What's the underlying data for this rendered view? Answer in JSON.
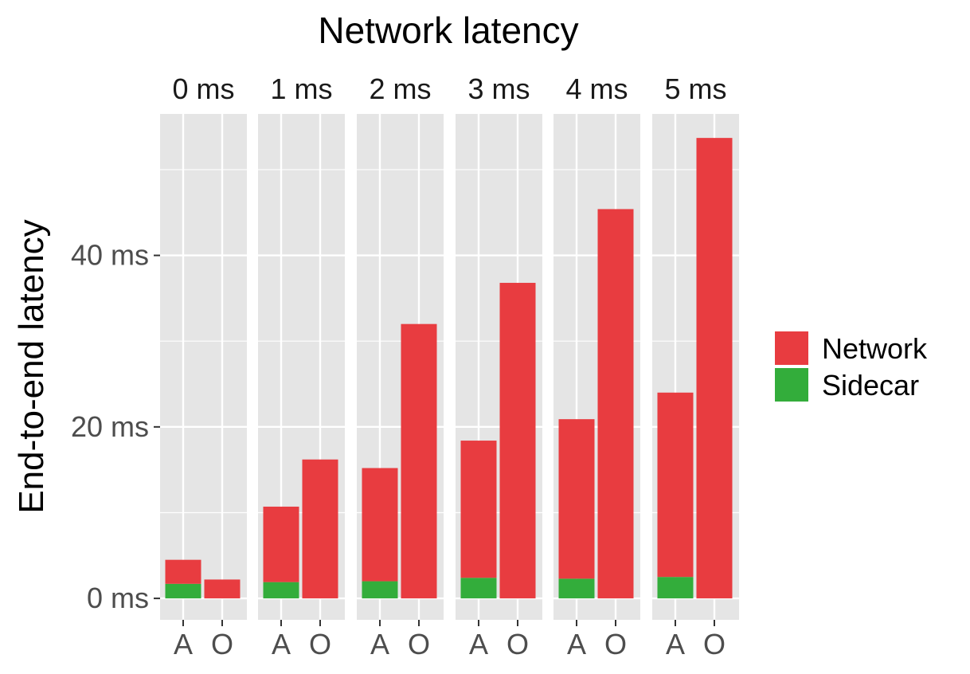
{
  "chart_data": {
    "type": "bar",
    "stacked": true,
    "title": "Network latency",
    "ylabel": "End-to-end latency",
    "xlabel": "",
    "facets": [
      "0 ms",
      "1 ms",
      "2 ms",
      "3 ms",
      "4 ms",
      "5 ms"
    ],
    "categories": [
      "A",
      "O"
    ],
    "yticks": [
      0,
      20,
      40
    ],
    "ytick_labels": [
      "0 ms",
      "20 ms",
      "40 ms"
    ],
    "ylim": [
      -2.5,
      56.5
    ],
    "series": [
      {
        "name": "Sidecar",
        "color": "#33ad3b",
        "values": [
          [
            1.7,
            0
          ],
          [
            1.9,
            0
          ],
          [
            2.0,
            0
          ],
          [
            2.4,
            0
          ],
          [
            2.3,
            0
          ],
          [
            2.5,
            0
          ]
        ]
      },
      {
        "name": "Network",
        "color": "#e83c40",
        "values": [
          [
            2.8,
            2.2
          ],
          [
            8.8,
            16.2
          ],
          [
            13.2,
            32.0
          ],
          [
            16.0,
            36.8
          ],
          [
            18.6,
            45.4
          ],
          [
            21.5,
            53.7
          ]
        ]
      }
    ],
    "legend": {
      "position": "right",
      "items": [
        {
          "label": "Network",
          "color": "#e83c40"
        },
        {
          "label": "Sidecar",
          "color": "#33ad3b"
        }
      ]
    },
    "grid": true,
    "panel_background": "#e5e5e5",
    "gridline_color": "#ffffff"
  }
}
